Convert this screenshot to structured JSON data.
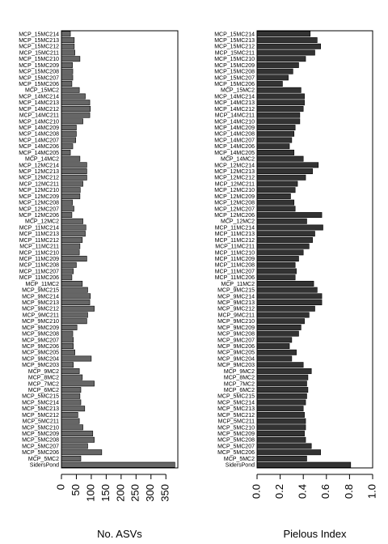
{
  "chart_data": [
    {
      "type": "bar",
      "orientation": "horizontal",
      "xlabel": "No. ASVs",
      "xlim": [
        0,
        390
      ],
      "xticks": [
        0,
        50,
        100,
        150,
        200,
        250,
        300,
        350
      ],
      "categories": [
        "MCP_15MC214",
        "MCP_15MC213",
        "MCP_15MC212",
        "MCP_15MC211",
        "MCP_15MC210",
        "MCP_15MC209",
        "MCP_15MC208",
        "MCP_15MC207",
        "MCP_15MC206",
        "MCP_15MC2",
        "MCP_14MC214",
        "MCP_14MC213",
        "MCP_14MC212",
        "MCP_14MC211",
        "MCP_14MC210",
        "MCP_14MC209",
        "MCP_14MC208",
        "MCP_14MC207",
        "MCP_14MC206",
        "MCP_14MC205",
        "MCP_14MC2",
        "MCP_12MC214",
        "MCP_12MC213",
        "MCP_12MC212",
        "MCP_12MC211",
        "MCP_12MC210",
        "MCP_12MC209",
        "MCP_12MC208",
        "MCP_12MC207",
        "MCP_12MC206",
        "MCP_12MC2",
        "MCP_11MC214",
        "MCP_11MC213",
        "MCP_11MC212",
        "MCP_11MC211",
        "MCP_11MC210",
        "MCP_11MC209",
        "MCP_11MC208",
        "MCP_11MC207",
        "MCP_11MC206",
        "MCP_11MC2",
        "MCP_9MC215",
        "MCP_9MC214",
        "MCP_9MC213",
        "MCP_9MC212",
        "MCP_9MC211",
        "MCP_9MC210",
        "MCP_9MC209",
        "MCP_9MC208",
        "MCP_9MC207",
        "MCP_9MC206",
        "MCP_9MC205",
        "MCP_9MC204",
        "MCP_9MC203",
        "MCP_9MC2",
        "MCP_8MC2",
        "MCP_7MC2",
        "MCP_6MC2",
        "MCP_5MC215",
        "MCP_5MC214",
        "MCP_5MC213",
        "MCP_5MC212",
        "MCP_5MC211",
        "MCP_5MC210",
        "MCP_5MC209",
        "MCP_5MC208",
        "MCP_5MC207",
        "MCP_5MC206",
        "MCP_5MC2",
        "SidersPond"
      ],
      "values": [
        30,
        43,
        43,
        45,
        62,
        37,
        38,
        38,
        35,
        60,
        80,
        95,
        97,
        95,
        72,
        50,
        50,
        48,
        38,
        30,
        62,
        85,
        85,
        85,
        72,
        63,
        62,
        37,
        42,
        35,
        72,
        82,
        80,
        70,
        62,
        60,
        85,
        50,
        40,
        35,
        70,
        88,
        97,
        95,
        110,
        88,
        85,
        52,
        38,
        40,
        40,
        45,
        100,
        40,
        60,
        70,
        110,
        65,
        62,
        65,
        78,
        55,
        60,
        72,
        105,
        110,
        88,
        135,
        65,
        380
      ]
    },
    {
      "type": "bar",
      "orientation": "horizontal",
      "xlabel": "Pielous Index",
      "xlim": [
        0,
        1
      ],
      "xticks": [
        0,
        0.2,
        0.4,
        0.6,
        0.8,
        1.0
      ],
      "xtick_labels": [
        "0.0",
        "0.2",
        "0.4",
        "0.6",
        "0.8",
        "1.0"
      ],
      "categories_ref": 0,
      "values": [
        0.46,
        0.52,
        0.55,
        0.5,
        0.42,
        0.36,
        0.31,
        0.27,
        0.22,
        0.38,
        0.41,
        0.41,
        0.4,
        0.37,
        0.37,
        0.33,
        0.32,
        0.3,
        0.28,
        0.32,
        0.4,
        0.53,
        0.48,
        0.42,
        0.35,
        0.33,
        0.29,
        0.32,
        0.33,
        0.56,
        0.43,
        0.57,
        0.5,
        0.48,
        0.45,
        0.4,
        0.36,
        0.33,
        0.34,
        0.33,
        0.49,
        0.52,
        0.56,
        0.56,
        0.5,
        0.45,
        0.41,
        0.38,
        0.36,
        0.3,
        0.28,
        0.34,
        0.3,
        0.4,
        0.47,
        0.44,
        0.43,
        0.44,
        0.43,
        0.42,
        0.4,
        0.41,
        0.42,
        0.42,
        0.41,
        0.42,
        0.47,
        0.55,
        0.43,
        0.81
      ]
    }
  ]
}
